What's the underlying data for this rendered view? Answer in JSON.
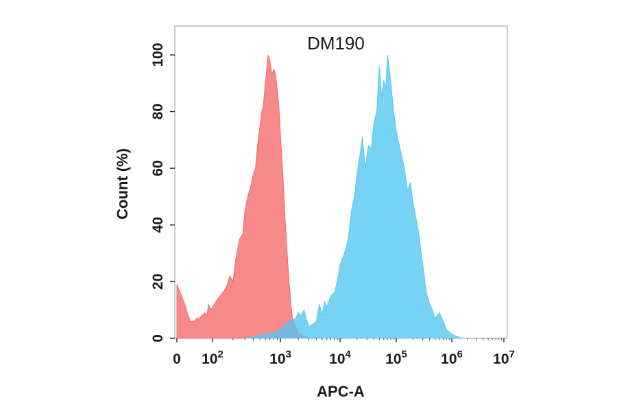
{
  "chart_data": {
    "type": "area",
    "title": "DM190",
    "xlabel": "APC-A",
    "ylabel": "Count  (%)",
    "x_scale": "biexponential",
    "xlim": [
      0,
      10000000
    ],
    "ylim": [
      0,
      110
    ],
    "grid": false,
    "legend": "none",
    "y_ticks": [
      "0",
      "20",
      "40",
      "60",
      "80",
      "100"
    ],
    "x_ticks": [
      {
        "base": "0",
        "exp": ""
      },
      {
        "base": "10",
        "exp": "2"
      },
      {
        "base": "10",
        "exp": "3"
      },
      {
        "base": "10",
        "exp": "4"
      },
      {
        "base": "10",
        "exp": "5"
      },
      {
        "base": "10",
        "exp": "6"
      },
      {
        "base": "10",
        "exp": "7"
      }
    ],
    "series": [
      {
        "color": "#f46b6b",
        "x": [
          0,
          5,
          10,
          15,
          25,
          30,
          40,
          50,
          60,
          70,
          80,
          90,
          100,
          120,
          140,
          160,
          180,
          200,
          220,
          250,
          280,
          300,
          330,
          360,
          400,
          430,
          460,
          500,
          530,
          560,
          600,
          630,
          660,
          700,
          750,
          800,
          850,
          900,
          950,
          1000,
          1100,
          1200,
          1300,
          1400,
          1500,
          1600,
          1800,
          2000,
          2300,
          2600,
          3000
        ],
        "values": [
          19,
          12,
          8,
          6,
          6,
          7,
          7,
          8,
          9,
          8,
          12,
          10,
          11,
          14,
          16,
          18,
          22,
          20,
          28,
          35,
          37,
          45,
          50,
          53,
          58,
          60,
          68,
          75,
          80,
          82,
          90,
          95,
          100,
          98,
          93,
          95,
          93,
          88,
          82,
          72,
          58,
          42,
          30,
          20,
          12,
          7,
          4,
          2,
          1,
          0.5,
          0
        ]
      },
      {
        "color": "#55c7f1",
        "x": [
          300,
          500,
          800,
          1000,
          1200,
          1500,
          1800,
          2000,
          2200,
          2500,
          2800,
          3000,
          3500,
          4000,
          4500,
          5000,
          5500,
          6000,
          7000,
          8000,
          9000,
          10000,
          12000,
          14000,
          16000,
          18000,
          20000,
          22000,
          25000,
          28000,
          32000,
          36000,
          40000,
          45000,
          50000,
          55000,
          60000,
          65000,
          70000,
          75000,
          80000,
          90000,
          100000,
          120000,
          140000,
          160000,
          180000,
          200000,
          250000,
          300000,
          350000,
          400000,
          450000,
          500000,
          600000,
          700000,
          800000,
          1000000,
          1300000,
          1600000
        ],
        "values": [
          0,
          1,
          2,
          3,
          5,
          6,
          7,
          9,
          8,
          10,
          6,
          4,
          5,
          6,
          12,
          8,
          13,
          11,
          15,
          16,
          20,
          26,
          30,
          35,
          45,
          50,
          58,
          63,
          71,
          60,
          68,
          67,
          76,
          80,
          96,
          85,
          91,
          88,
          100,
          95,
          90,
          80,
          73,
          66,
          60,
          52,
          55,
          48,
          38,
          26,
          16,
          12,
          10,
          7,
          9,
          6,
          3,
          1.5,
          0.5,
          0
        ]
      }
    ]
  }
}
